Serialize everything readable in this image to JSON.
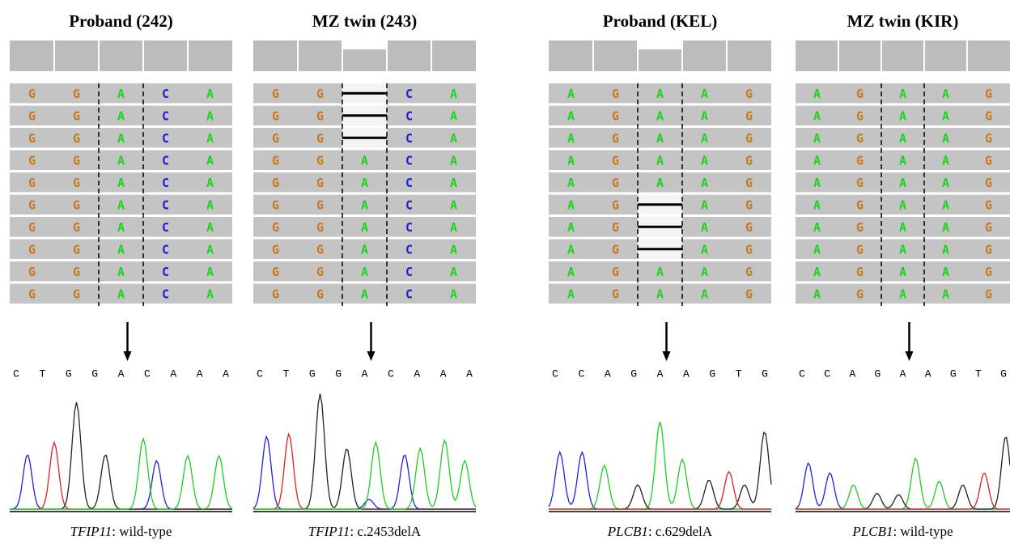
{
  "panels": [
    {
      "title": "Proband (242)",
      "reads": [
        [
          "G",
          "G",
          "A",
          "C",
          "A"
        ],
        [
          "G",
          "G",
          "A",
          "C",
          "A"
        ],
        [
          "G",
          "G",
          "A",
          "C",
          "A"
        ],
        [
          "G",
          "G",
          "A",
          "C",
          "A"
        ],
        [
          "G",
          "G",
          "A",
          "C",
          "A"
        ],
        [
          "G",
          "G",
          "A",
          "C",
          "A"
        ],
        [
          "G",
          "G",
          "A",
          "C",
          "A"
        ],
        [
          "G",
          "G",
          "A",
          "C",
          "A"
        ],
        [
          "G",
          "G",
          "A",
          "C",
          "A"
        ],
        [
          "G",
          "G",
          "A",
          "C",
          "A"
        ]
      ],
      "sequence": [
        "C",
        "T",
        "G",
        "G",
        "A",
        "C",
        "A",
        "A",
        "A"
      ],
      "gene": "TFIP11",
      "note": ": wild-type"
    },
    {
      "title": "MZ twin (243)",
      "reads": [
        [
          "G",
          "G",
          null,
          "C",
          "A"
        ],
        [
          "G",
          "G",
          null,
          "C",
          "A"
        ],
        [
          "G",
          "G",
          null,
          "C",
          "A"
        ],
        [
          "G",
          "G",
          "A",
          "C",
          "A"
        ],
        [
          "G",
          "G",
          "A",
          "C",
          "A"
        ],
        [
          "G",
          "G",
          "A",
          "C",
          "A"
        ],
        [
          "G",
          "G",
          "A",
          "C",
          "A"
        ],
        [
          "G",
          "G",
          "A",
          "C",
          "A"
        ],
        [
          "G",
          "G",
          "A",
          "C",
          "A"
        ],
        [
          "G",
          "G",
          "A",
          "C",
          "A"
        ]
      ],
      "sequence": [
        "C",
        "T",
        "G",
        "G",
        "A",
        "C",
        "A",
        "A",
        "A"
      ],
      "gene": "TFIP11",
      "note": ": c.2453delA"
    },
    {
      "title": "Proband (KEL)",
      "reads": [
        [
          "A",
          "G",
          "A",
          "A",
          "G"
        ],
        [
          "A",
          "G",
          "A",
          "A",
          "G"
        ],
        [
          "A",
          "G",
          "A",
          "A",
          "G"
        ],
        [
          "A",
          "G",
          "A",
          "A",
          "G"
        ],
        [
          "A",
          "G",
          "A",
          "A",
          "G"
        ],
        [
          "A",
          "G",
          null,
          "A",
          "G"
        ],
        [
          "A",
          "G",
          null,
          "A",
          "G"
        ],
        [
          "A",
          "G",
          null,
          "A",
          "G"
        ],
        [
          "A",
          "G",
          "A",
          "A",
          "G"
        ],
        [
          "A",
          "G",
          "A",
          "A",
          "G"
        ]
      ],
      "sequence": [
        "C",
        "C",
        "A",
        "G",
        "A",
        "A",
        "G",
        "T",
        "G"
      ],
      "gene": "PLCB1",
      "note": ": c.629delA"
    },
    {
      "title": "MZ twin (KIR)",
      "reads": [
        [
          "A",
          "G",
          "A",
          "A",
          "G"
        ],
        [
          "A",
          "G",
          "A",
          "A",
          "G"
        ],
        [
          "A",
          "G",
          "A",
          "A",
          "G"
        ],
        [
          "A",
          "G",
          "A",
          "A",
          "G"
        ],
        [
          "A",
          "G",
          "A",
          "A",
          "G"
        ],
        [
          "A",
          "G",
          "A",
          "A",
          "G"
        ],
        [
          "A",
          "G",
          "A",
          "A",
          "G"
        ],
        [
          "A",
          "G",
          "A",
          "A",
          "G"
        ],
        [
          "A",
          "G",
          "A",
          "A",
          "G"
        ],
        [
          "A",
          "G",
          "A",
          "A",
          "G"
        ]
      ],
      "sequence": [
        "C",
        "C",
        "A",
        "G",
        "A",
        "A",
        "G",
        "T",
        "G"
      ],
      "gene": "PLCB1",
      "note": ": wild-type"
    }
  ]
}
